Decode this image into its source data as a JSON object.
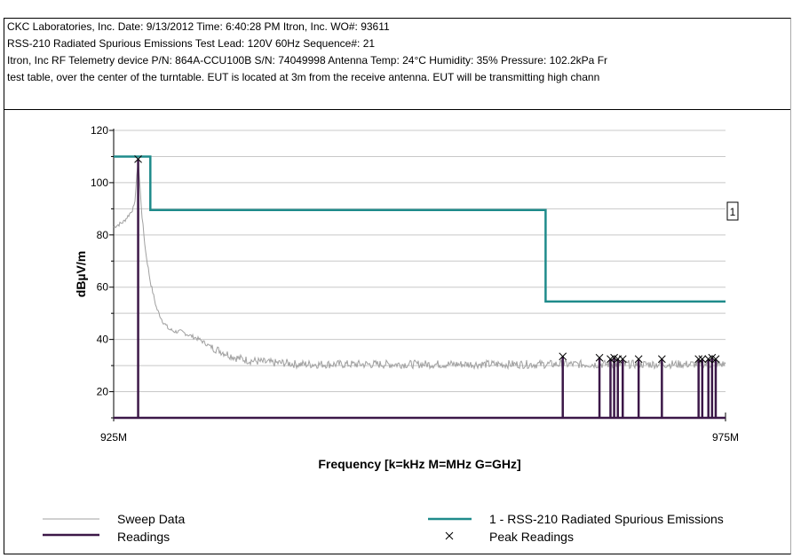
{
  "header": {
    "line1": "CKC Laboratories, Inc.  Date:  9/13/2012  Time: 6:40:28 PM  Itron, Inc. WO#: 93611",
    "line2": "RSS-210 Radiated Spurious Emissions Test Lead:  120V 60Hz Sequence#: 21",
    "line3": "Itron, Inc RF Telemetry device P/N: 864A-CCU100B S/N: 74049998 Antenna Temp: 24°C Humidity: 35% Pressure: 102.2kPa Fr",
    "line4": "test table, over the center of the turntable. EUT is located at 3m from the receive antenna. EUT will be transmitting  high chann"
  },
  "chart_data": {
    "type": "line",
    "xlabel": "Frequency [k=kHz M=MHz G=GHz]",
    "ylabel": "dBµV/m",
    "xlim": [
      925,
      975
    ],
    "ylim": [
      10,
      120
    ],
    "x_tick_labels": [
      "925M",
      "975M"
    ],
    "y_ticks": [
      20,
      40,
      60,
      80,
      100,
      120
    ],
    "grid": true,
    "colors": {
      "sweep": "#a0a0a0",
      "limit": "#1f8b8b",
      "readings": "#3c1848",
      "peak_marker": "#000000"
    },
    "series": [
      {
        "name": "Sweep Data",
        "x": [
          925.0,
          925.8,
          926.3,
          926.7,
          927.0,
          927.3,
          927.6,
          928.0,
          928.5,
          929.0,
          929.5,
          930.0,
          930.5,
          931.0,
          932.0,
          933.0,
          934.0,
          935.0,
          936.0,
          937.0,
          938.0,
          939.0,
          940.0,
          942.0,
          944.0,
          946.0,
          948.0,
          950.0,
          952.0,
          954.0,
          956.0,
          958.0,
          960.0,
          962.0,
          964.0,
          966.0,
          968.0,
          970.0,
          972.0,
          974.0,
          975.0
        ],
        "y": [
          83,
          85,
          88,
          91,
          109,
          88,
          74,
          62,
          52,
          47,
          44,
          43,
          43,
          42,
          40,
          37,
          35,
          33,
          32,
          31.5,
          31,
          31,
          30.5,
          30.5,
          30.5,
          30.5,
          30.5,
          30.5,
          30.5,
          30.5,
          30.5,
          30.5,
          30.5,
          30.5,
          30.5,
          30.5,
          30.5,
          30.5,
          30.5,
          30.5,
          30.5
        ]
      },
      {
        "name": "1 - RSS-210 Radiated Spurious Emissions",
        "x": [
          925,
          928,
          928,
          960.3,
          960.3,
          975
        ],
        "y": [
          110,
          110,
          89.5,
          89.5,
          54.5,
          54.5
        ],
        "marker_label": "1"
      },
      {
        "name": "Readings",
        "x": [
          927.0,
          961.7,
          964.7,
          965.6,
          965.9,
          966.2,
          966.6,
          967.9,
          969.8,
          972.8,
          973.1,
          973.6,
          973.9,
          974.2
        ],
        "y": [
          109,
          33.5,
          33,
          32.5,
          33,
          32.5,
          32.5,
          32.5,
          32.5,
          32.5,
          32.5,
          32.5,
          33,
          32.5
        ]
      },
      {
        "name": "Peak Readings",
        "x": [
          927.0,
          961.7,
          964.7,
          965.6,
          965.9,
          966.2,
          966.6,
          967.9,
          969.8,
          972.8,
          973.1,
          973.6,
          973.9,
          974.2
        ],
        "y": [
          109,
          33.5,
          33,
          32.5,
          33,
          32.5,
          32.5,
          32.5,
          32.5,
          32.5,
          32.5,
          32.5,
          33,
          32.5
        ]
      }
    ],
    "legend_position": "bottom"
  }
}
